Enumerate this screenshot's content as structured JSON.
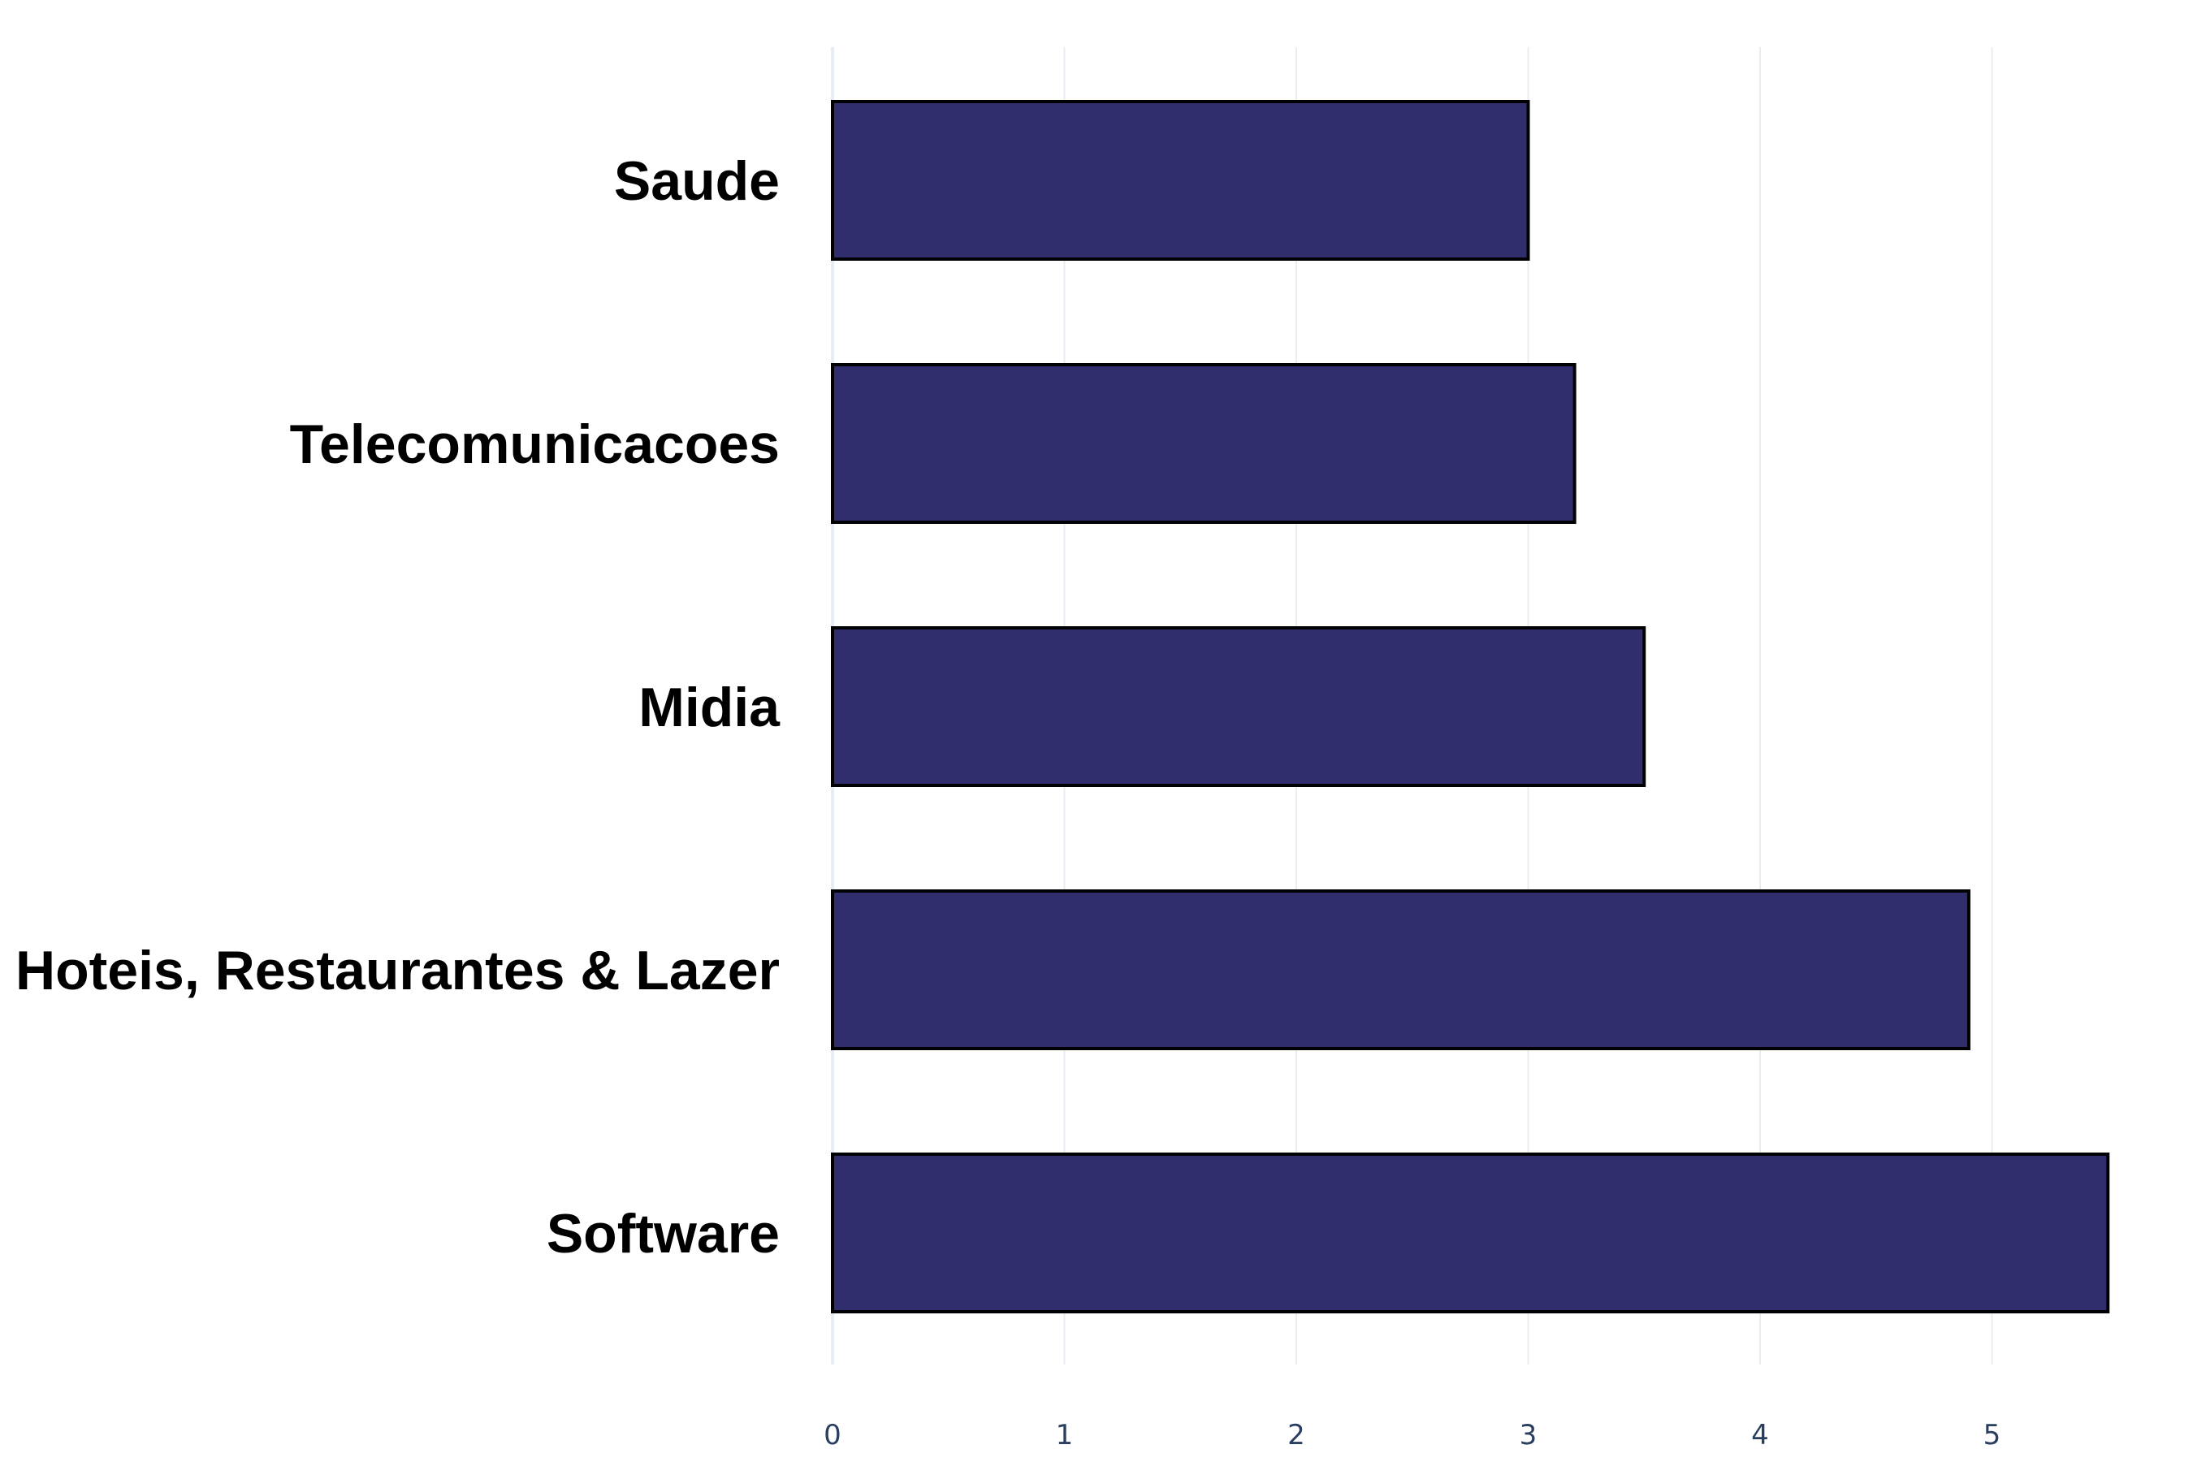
{
  "chart_data": {
    "type": "bar",
    "orientation": "horizontal",
    "categories": [
      "Saude",
      "Telecomunicacoes",
      "Midia",
      "Hoteis, Restaurantes & Lazer",
      "Software"
    ],
    "values": [
      3.0,
      3.2,
      3.5,
      4.9,
      5.5
    ],
    "xlim": [
      0,
      5.7
    ],
    "x_ticks": [
      "0",
      "1",
      "2",
      "3",
      "4",
      "5"
    ],
    "grid": "vertical",
    "colors": {
      "bar_fill": "#312e6e",
      "bar_stroke": "#000000",
      "grid": "#e8ecf3",
      "tick_text": "#2a3f5f",
      "label_text": "#000000"
    }
  }
}
